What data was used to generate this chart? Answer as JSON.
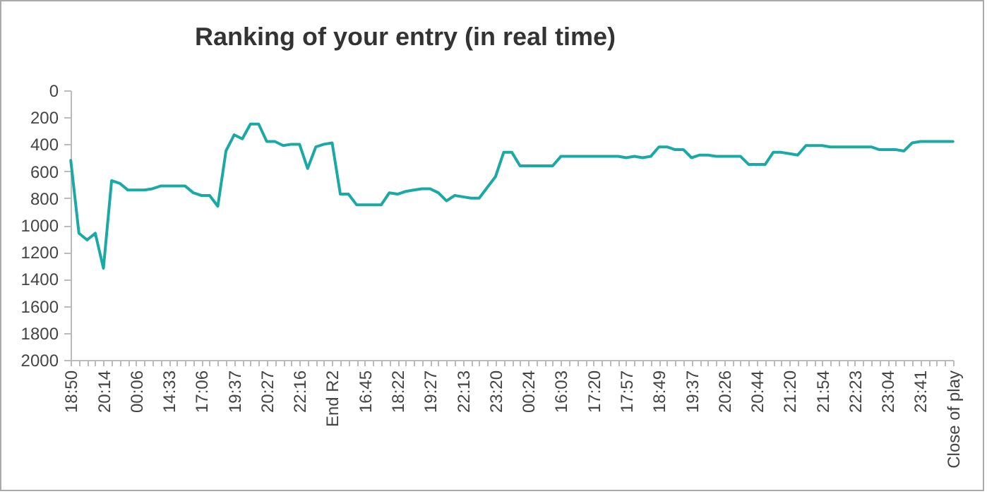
{
  "chart_data": {
    "type": "line",
    "title": "Ranking of your entry (in real time)",
    "categories": [
      "18:50",
      null,
      null,
      null,
      "20:14",
      null,
      null,
      null,
      "00:06",
      null,
      null,
      null,
      "14:33",
      null,
      null,
      null,
      "17:06",
      null,
      null,
      null,
      "19:37",
      null,
      null,
      null,
      "20:27",
      null,
      null,
      null,
      "22:16",
      null,
      null,
      null,
      "End R2",
      null,
      null,
      null,
      "16:45",
      null,
      null,
      null,
      "18:22",
      null,
      null,
      null,
      "19:27",
      null,
      null,
      null,
      "22:13",
      null,
      null,
      null,
      "23:20",
      null,
      null,
      null,
      "00:24",
      null,
      null,
      null,
      "16:03",
      null,
      null,
      null,
      "17:20",
      null,
      null,
      null,
      "17:57",
      null,
      null,
      null,
      "18:49",
      null,
      null,
      null,
      "19:37",
      null,
      null,
      null,
      "20:26",
      null,
      null,
      null,
      "20:44",
      null,
      null,
      null,
      "21:20",
      null,
      null,
      null,
      "21:54",
      null,
      null,
      null,
      "22:23",
      null,
      null,
      null,
      "23:04",
      null,
      null,
      null,
      "23:41",
      null,
      null,
      null,
      "Close of play"
    ],
    "values": [
      520,
      1060,
      1110,
      1060,
      1320,
      670,
      690,
      740,
      740,
      740,
      730,
      710,
      710,
      710,
      710,
      760,
      780,
      780,
      860,
      450,
      330,
      360,
      250,
      250,
      380,
      380,
      410,
      400,
      400,
      580,
      420,
      400,
      390,
      770,
      770,
      850,
      850,
      850,
      850,
      760,
      770,
      750,
      740,
      730,
      730,
      760,
      820,
      780,
      790,
      800,
      800,
      720,
      640,
      460,
      460,
      560,
      560,
      560,
      560,
      560,
      490,
      490,
      490,
      490,
      490,
      490,
      490,
      490,
      500,
      490,
      500,
      490,
      420,
      420,
      440,
      440,
      500,
      480,
      480,
      490,
      490,
      490,
      490,
      550,
      550,
      550,
      460,
      460,
      470,
      480,
      410,
      410,
      410,
      420,
      420,
      420,
      420,
      420,
      420,
      440,
      440,
      440,
      450,
      390,
      380,
      380,
      380,
      380,
      380
    ],
    "color": "#1aa9a4",
    "ylim": [
      2000,
      0
    ],
    "yticks": [
      0,
      200,
      400,
      600,
      800,
      1000,
      1200,
      1400,
      1600,
      1800,
      2000
    ]
  }
}
